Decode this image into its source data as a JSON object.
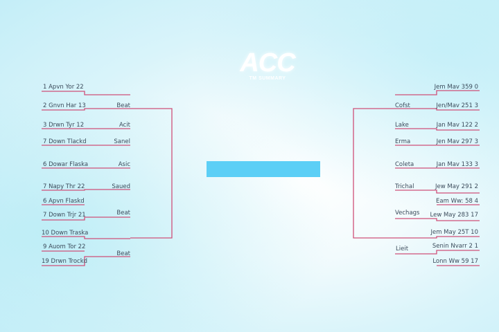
{
  "logo": {
    "main": "ACC",
    "sub": "TM SUMMARY"
  },
  "colors": {
    "line": "#cf4f78",
    "center_bar": "#5ccff6",
    "text": "#3a4a5a"
  },
  "left": {
    "teams": [
      "1  Apvn Yor 22",
      "2  Gnvn Har 13",
      "3  Drwn Tyr 12",
      "7  Down Tlackd",
      "6  Dowar Flaska",
      "7  Napy Thr 22",
      "6  Apvn Flaskd",
      "7  Down Trjr 21",
      "10  Down Traska",
      "9  Auom Tor 22",
      "19  Drwn Trockd"
    ],
    "winners": [
      "Beat",
      "Acit",
      "Sanel",
      "Asic",
      "Saued",
      "Beat",
      "Beat"
    ]
  },
  "right": {
    "teams": [
      "Jem Mav 359  0",
      "Jen/Mav 251  3",
      "Jan Mav 122  2",
      "Jen Mav 297  3",
      "Jan Mav 133  3",
      "Jew May 291  2",
      "Eam Ww: 58  4",
      "Lew May 283  17",
      "Jem May 25T  10",
      "Senin Nvarr 2  1",
      "Lonn Ww  59  17"
    ],
    "winners": [
      "Cofst",
      "Lake",
      "Erma",
      "Coleta",
      "Trichal",
      "Vechags",
      "Lieit"
    ]
  }
}
